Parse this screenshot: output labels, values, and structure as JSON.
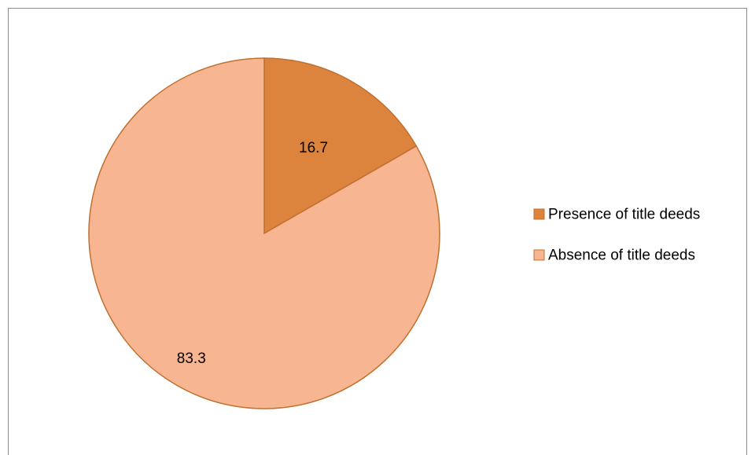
{
  "chart_data": {
    "type": "pie",
    "title": "",
    "legend_position": "right",
    "slices": [
      {
        "label": "Presence of title deeds",
        "value": 16.7,
        "color": "#dc833e"
      },
      {
        "label": "Absence of title deeds",
        "value": 83.3,
        "color": "#f8b592"
      }
    ],
    "slice_border_color": "#c0702f"
  }
}
